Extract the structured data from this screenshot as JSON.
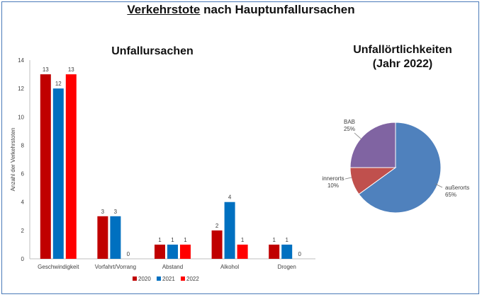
{
  "title": {
    "underlined": "Verkehrstote",
    "rest": " nach Hauptunfallursachen"
  },
  "chart_data": [
    {
      "type": "bar",
      "title": "Unfallursachen",
      "ylabel": "Anzahl der Verkehrstoten",
      "xlabel": "",
      "ylim": [
        0,
        14
      ],
      "yticks": [
        "0",
        "2",
        "4",
        "6",
        "8",
        "10",
        "12",
        "14"
      ],
      "grid": false,
      "legend": "bottom",
      "categories": [
        "Geschwindigkeit",
        "Vorfahrt/Vorrang",
        "Abstand",
        "Alkohol",
        "Drogen"
      ],
      "series": [
        {
          "name": "2020",
          "color": "#c00000",
          "values": [
            13,
            3,
            1,
            2,
            1
          ],
          "labels": [
            "13",
            "3",
            "1",
            "2",
            "1"
          ]
        },
        {
          "name": "2021",
          "color": "#0070c0",
          "values": [
            12,
            3,
            1,
            4,
            1
          ],
          "labels": [
            "12",
            "3",
            "1",
            "4",
            "1"
          ]
        },
        {
          "name": "2022",
          "color": "#ff0000",
          "values": [
            13,
            0,
            1,
            1,
            0
          ],
          "labels": [
            "13",
            "0",
            "1",
            "1",
            "0"
          ]
        }
      ]
    },
    {
      "type": "pie",
      "title": [
        "Unfallörtlichkeiten",
        "(Jahr 2022)"
      ],
      "slices": [
        {
          "name": "außerorts",
          "value": 65,
          "label": "65%",
          "color": "#4f81bd"
        },
        {
          "name": "innerorts",
          "value": 10,
          "label": "10%",
          "color": "#c0504d"
        },
        {
          "name": "BAB",
          "value": 25,
          "label": "25%",
          "color": "#8064a2"
        }
      ]
    }
  ]
}
